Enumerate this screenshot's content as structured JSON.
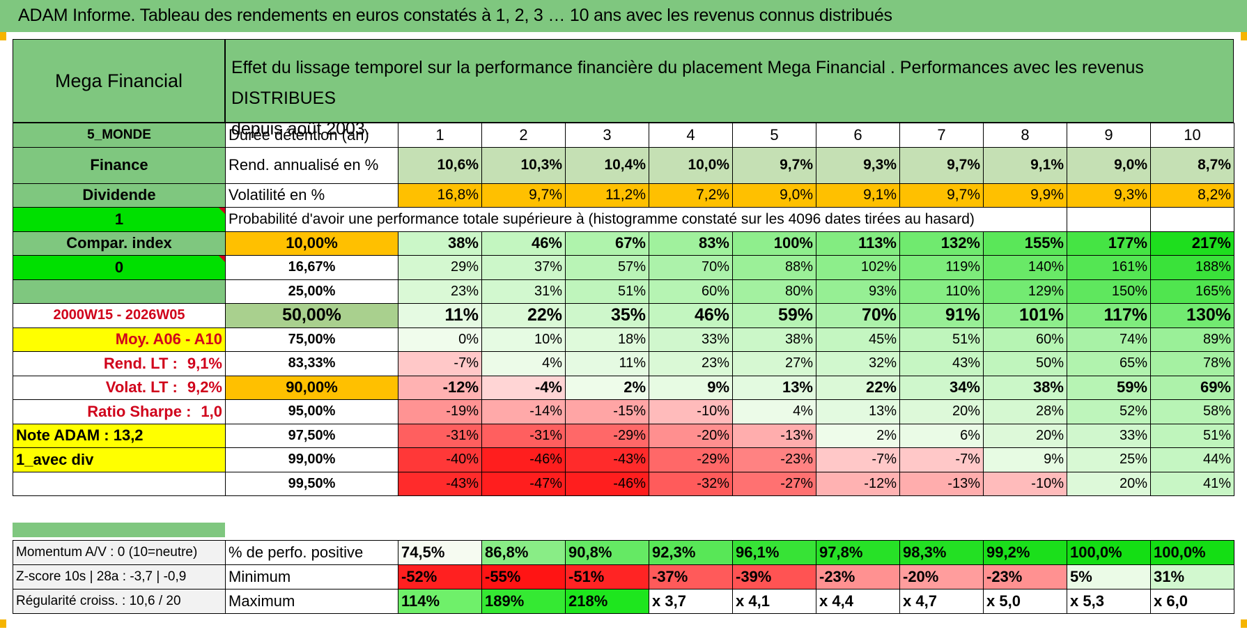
{
  "title": "ADAM Informe. Tableau des rendements en euros constatés à 1, 2, 3 … 10 ans avec les revenus connus distribués",
  "colors": {
    "green_header": "#7fc77f",
    "yellow": "#ffff00",
    "orange": "#ffc000",
    "bright_green": "#00e000",
    "red_text": "#d0021b"
  },
  "header": {
    "left": "Mega Financial",
    "right_line1": "Effet du lissage temporel sur la performance financière du placement Mega Financial . Performances avec les revenus DISTRIBUES",
    "right_line2": "depuis août 2003."
  },
  "side": {
    "zone": "5_MONDE",
    "sector": "Finance",
    "type": "Dividende",
    "flag1": "1",
    "compar": "Compar. index",
    "flag0": "0",
    "period": "2000W15 - 2026W05",
    "moy": "Moy. A06 - A10",
    "rend_lt_label": "Rend. LT :",
    "rend_lt_value": "9,1%",
    "volat_lt_label": "Volat. LT :",
    "volat_lt_value": "9,2%",
    "sharpe_label": "Ratio Sharpe :",
    "sharpe_value": "1,0",
    "note": "Note ADAM : 13,2",
    "div": "1_avec div"
  },
  "labels": {
    "duree": "Durée détention (an)",
    "rend": "Rend. annualisé en %",
    "vol": "Volatilité en %",
    "proba": "Probabilité d'avoir une performance totale supérieure à (histogramme constaté sur les 4096 dates tirées au hasard)"
  },
  "years": [
    "1",
    "2",
    "3",
    "4",
    "5",
    "6",
    "7",
    "8",
    "9",
    "10"
  ],
  "rend": [
    "10,6%",
    "10,3%",
    "10,4%",
    "10,0%",
    "9,7%",
    "9,3%",
    "9,7%",
    "9,1%",
    "9,0%",
    "8,7%"
  ],
  "vol": [
    "16,8%",
    "9,7%",
    "11,2%",
    "7,2%",
    "9,0%",
    "9,1%",
    "9,7%",
    "9,9%",
    "9,3%",
    "8,2%"
  ],
  "pct_rows": [
    {
      "p": "10,00%",
      "v": [
        "38%",
        "46%",
        "67%",
        "83%",
        "100%",
        "113%",
        "132%",
        "155%",
        "177%",
        "217%"
      ]
    },
    {
      "p": "16,67%",
      "v": [
        "29%",
        "37%",
        "57%",
        "70%",
        "88%",
        "102%",
        "119%",
        "140%",
        "161%",
        "188%"
      ]
    },
    {
      "p": "25,00%",
      "v": [
        "23%",
        "31%",
        "51%",
        "60%",
        "80%",
        "93%",
        "110%",
        "129%",
        "150%",
        "165%"
      ]
    },
    {
      "p": "50,00%",
      "v": [
        "11%",
        "22%",
        "35%",
        "46%",
        "59%",
        "70%",
        "91%",
        "101%",
        "117%",
        "130%"
      ]
    },
    {
      "p": "75,00%",
      "v": [
        "0%",
        "10%",
        "18%",
        "33%",
        "38%",
        "45%",
        "51%",
        "60%",
        "74%",
        "89%"
      ]
    },
    {
      "p": "83,33%",
      "v": [
        "-7%",
        "4%",
        "11%",
        "23%",
        "27%",
        "32%",
        "43%",
        "50%",
        "65%",
        "78%"
      ]
    },
    {
      "p": "90,00%",
      "v": [
        "-12%",
        "-4%",
        "2%",
        "9%",
        "13%",
        "22%",
        "34%",
        "38%",
        "59%",
        "69%"
      ]
    },
    {
      "p": "95,00%",
      "v": [
        "-19%",
        "-14%",
        "-15%",
        "-10%",
        "4%",
        "13%",
        "20%",
        "28%",
        "52%",
        "58%"
      ]
    },
    {
      "p": "97,50%",
      "v": [
        "-31%",
        "-31%",
        "-29%",
        "-20%",
        "-13%",
        "2%",
        "6%",
        "20%",
        "33%",
        "51%"
      ]
    },
    {
      "p": "99,00%",
      "v": [
        "-40%",
        "-46%",
        "-43%",
        "-29%",
        "-23%",
        "-7%",
        "-7%",
        "9%",
        "25%",
        "44%"
      ]
    },
    {
      "p": "99,50%",
      "v": [
        "-43%",
        "-47%",
        "-46%",
        "-32%",
        "-27%",
        "-12%",
        "-13%",
        "-10%",
        "20%",
        "41%"
      ]
    }
  ],
  "bottom": {
    "momentum": "Momentum A/V : 0 (10=neutre)",
    "zscore": "Z-score 10s | 28a : -3,7 | -0,9",
    "regularite": "Régularité croiss. : 10,6 / 20",
    "pos_label": "% de perfo. positive",
    "min_label": "Minimum",
    "max_label": "Maximum",
    "pos": [
      "74,5%",
      "86,8%",
      "90,8%",
      "92,3%",
      "96,1%",
      "97,8%",
      "98,3%",
      "99,2%",
      "100,0%",
      "100,0%"
    ],
    "min": [
      "-52%",
      "-55%",
      "-51%",
      "-37%",
      "-39%",
      "-23%",
      "-20%",
      "-23%",
      "5%",
      "31%"
    ],
    "max": [
      "114%",
      "189%",
      "218%",
      "x 3,7",
      "x 4,1",
      "x 4,4",
      "x 4,7",
      "x 5,0",
      "x 5,3",
      "x 6,0"
    ]
  }
}
